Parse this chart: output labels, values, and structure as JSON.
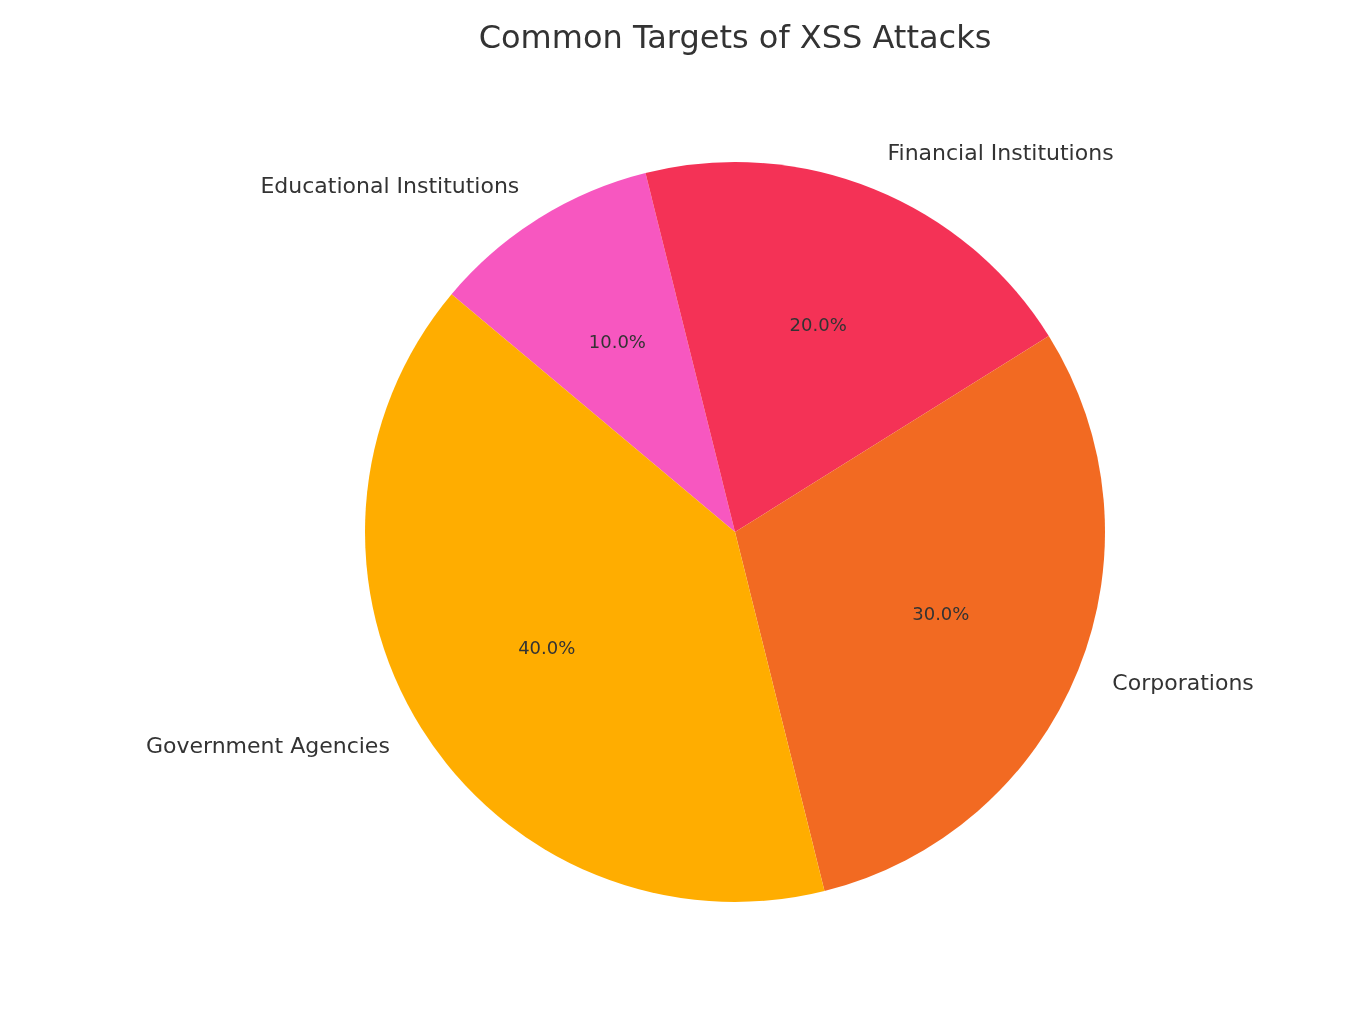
{
  "chart_data": {
    "type": "pie",
    "title": "Common Targets of XSS Attacks",
    "categories": [
      "Government Agencies",
      "Corporations",
      "Financial Institutions",
      "Educational Institutions"
    ],
    "values": [
      40,
      30,
      20,
      10
    ],
    "colors": [
      "#ffad00",
      "#f26a22",
      "#f43256",
      "#f757c0"
    ],
    "value_labels": [
      "40.0%",
      "30.0%",
      "20.0%",
      "10.0%"
    ],
    "legend": false
  }
}
